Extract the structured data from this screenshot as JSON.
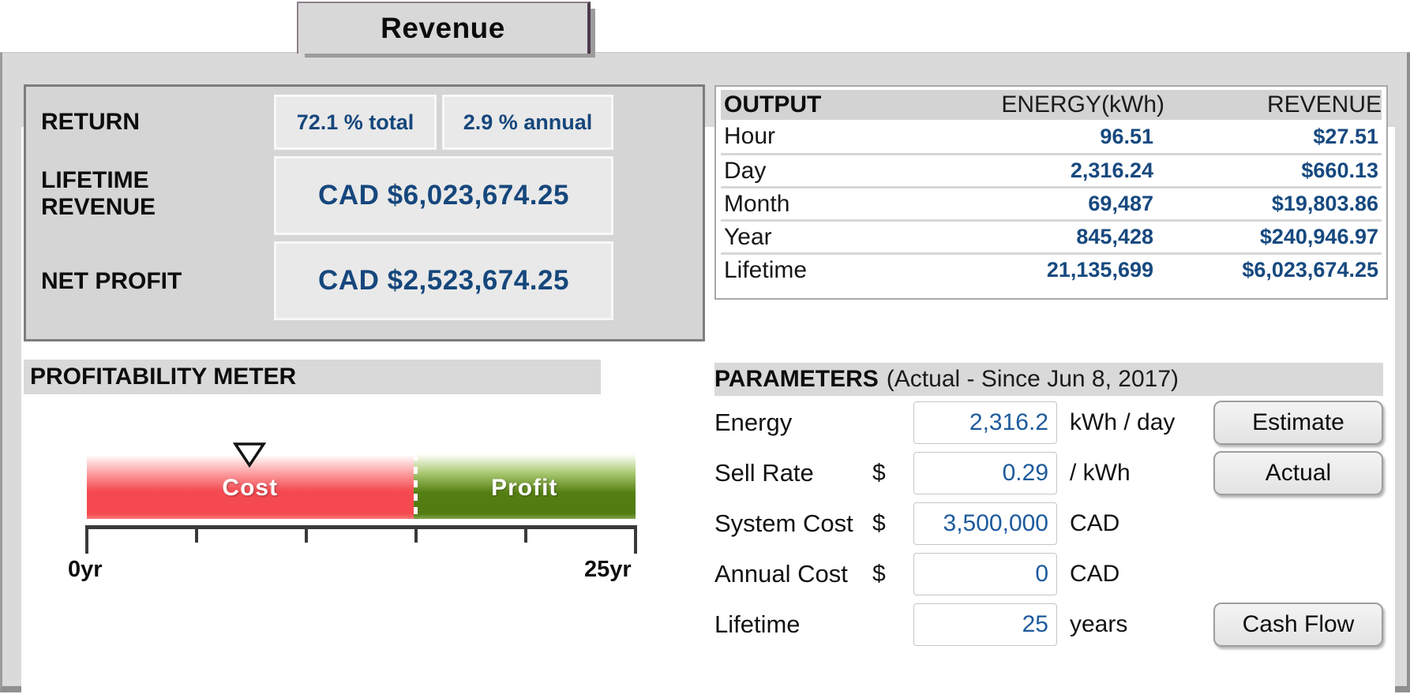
{
  "tab": {
    "label": "Revenue"
  },
  "summary": {
    "return": {
      "label": "RETURN",
      "total": "72.1 % total",
      "annual": "2.9 % annual"
    },
    "lifetime_revenue": {
      "label": "LIFETIME REVENUE",
      "value": "CAD $6,023,674.25"
    },
    "net_profit": {
      "label": "NET PROFIT",
      "value": "CAD $2,523,674.25"
    }
  },
  "output_table": {
    "headers": {
      "col1": "OUTPUT",
      "col2": "ENERGY(kWh)",
      "col3": "REVENUE"
    },
    "rows": [
      {
        "label": "Hour",
        "energy": "96.51",
        "revenue": "$27.51"
      },
      {
        "label": "Day",
        "energy": "2,316.24",
        "revenue": "$660.13"
      },
      {
        "label": "Month",
        "energy": "69,487",
        "revenue": "$19,803.86"
      },
      {
        "label": "Year",
        "energy": "845,428",
        "revenue": "$240,946.97"
      },
      {
        "label": "Lifetime",
        "energy": "21,135,699",
        "revenue": "$6,023,674.25"
      }
    ]
  },
  "meter": {
    "title": "PROFITABILITY METER",
    "cost_label": "Cost",
    "profit_label": "Profit",
    "axis_start": "0yr",
    "axis_end": "25yr",
    "cost_width": "59.5%",
    "profit_left": "59.5%",
    "divider_left": "59.5%",
    "marker_left": "29.7%",
    "colors": {
      "cost_red": "#f4494f",
      "profit_green": "#527c12"
    }
  },
  "parameters": {
    "title": "PARAMETERS",
    "subtitle": "(Actual - Since Jun 8, 2017)",
    "rows": [
      {
        "label": "Energy",
        "currency": "",
        "value": "2,316.2",
        "unit": "kWh / day"
      },
      {
        "label": "Sell Rate",
        "currency": "$",
        "value": "0.29",
        "unit": "/ kWh"
      },
      {
        "label": "System Cost",
        "currency": "$",
        "value": "3,500,000",
        "unit": "CAD"
      },
      {
        "label": "Annual Cost",
        "currency": "$",
        "value": "0",
        "unit": "CAD"
      },
      {
        "label": "Lifetime",
        "currency": "",
        "value": "25",
        "unit": "years"
      }
    ],
    "buttons": {
      "estimate": "Estimate",
      "actual": "Actual",
      "cash_flow": "Cash Flow"
    }
  },
  "colors": {
    "accent_blue": "#16477c",
    "input_blue": "#1d5a9c",
    "panel_gray": "#dadada",
    "header_gray": "#d3d3d3"
  }
}
